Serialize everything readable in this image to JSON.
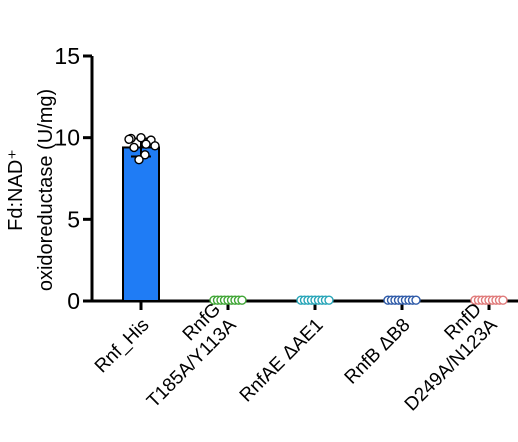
{
  "chart_data": {
    "type": "bar",
    "ylabel_line1": "Fd:NAD⁺",
    "ylabel_line2": "oxidoreductase (U/mg)",
    "ylim": [
      0,
      15
    ],
    "yticks": [
      0,
      5,
      10,
      15
    ],
    "categories": [
      {
        "lines": [
          "Rnf_His"
        ]
      },
      {
        "lines": [
          "RnfG",
          "T185A/Y113A"
        ]
      },
      {
        "lines": [
          "RnfAE ΔAE1"
        ]
      },
      {
        "lines": [
          "RnfB ΔB8"
        ]
      },
      {
        "lines": [
          "RnfD",
          "D249A/N123A"
        ]
      }
    ],
    "values": [
      9.4,
      0.05,
      0.05,
      0.05,
      0.05
    ],
    "error": [
      0.55,
      0,
      0,
      0,
      0
    ],
    "points": [
      [
        9.95,
        10.0,
        9.85,
        9.9,
        9.6,
        9.5,
        9.4,
        8.95,
        8.65
      ],
      [
        0.05,
        0.05,
        0.05,
        0.05,
        0.05,
        0.05,
        0.05,
        0.05,
        0.05
      ],
      [
        0.05,
        0.05,
        0.05,
        0.05,
        0.05,
        0.05,
        0.05,
        0.05,
        0.05
      ],
      [
        0.05,
        0.05,
        0.05,
        0.05,
        0.05,
        0.05,
        0.05,
        0.05,
        0.05
      ],
      [
        0.05,
        0.05,
        0.05,
        0.05,
        0.05,
        0.05,
        0.05,
        0.05,
        0.05
      ]
    ],
    "colors": [
      "#1f7cf5",
      "#3fa535",
      "#27a5b8",
      "#2e5aa8",
      "#e07a7a"
    ],
    "grid": false,
    "legend": "none"
  }
}
